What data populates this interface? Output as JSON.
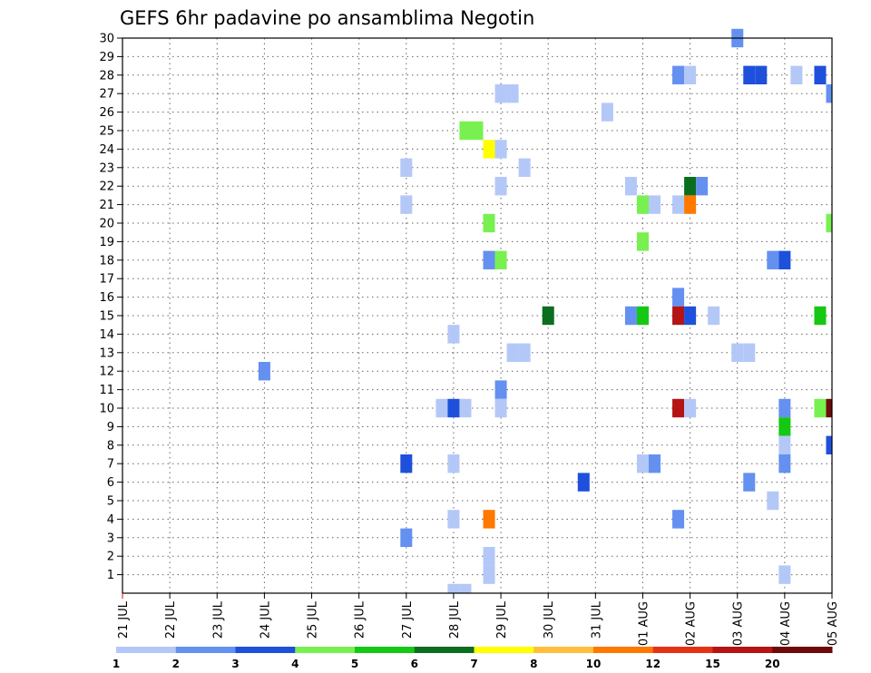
{
  "chart_data": {
    "type": "heatmap",
    "title": "GEFS 6hr padavine po ansamblima Negotin",
    "xlabel": "",
    "ylabel": "",
    "x_tick_labels": [
      "21 JUL",
      "22 JUL",
      "23 JUL",
      "24 JUL",
      "25 JUL",
      "26 JUL",
      "27 JUL",
      "28 JUL",
      "29 JUL",
      "30 JUL",
      "31 JUL",
      "01 AUG",
      "02 AUG",
      "03 AUG",
      "04 AUG",
      "05 AUG"
    ],
    "y_tick_labels": [
      "1",
      "2",
      "3",
      "4",
      "5",
      "6",
      "7",
      "8",
      "9",
      "10",
      "11",
      "12",
      "13",
      "14",
      "15",
      "16",
      "17",
      "18",
      "19",
      "20",
      "21",
      "22",
      "23",
      "24",
      "25",
      "26",
      "27",
      "28",
      "29",
      "30"
    ],
    "xlim": [
      "21 JUL 00",
      "05 AUG 00"
    ],
    "ylim": [
      0,
      30
    ],
    "grid": true,
    "x_step_hours": 6,
    "colorbar": {
      "tick_labels": [
        "1",
        "2",
        "3",
        "4",
        "5",
        "6",
        "7",
        "8",
        "10",
        "12",
        "15",
        "20"
      ],
      "colors": [
        "#b4c8f8",
        "#6490f0",
        "#1e50dc",
        "#78f050",
        "#14c814",
        "#0a6e1e",
        "#ffff00",
        "#ffbe3c",
        "#ff7800",
        "#e63214",
        "#b41414",
        "#6e0a0a"
      ]
    },
    "cells": [
      {
        "member": 30,
        "x": "03 AUG 00",
        "color": "#6490f0"
      },
      {
        "member": 28,
        "x": "01 AUG 18",
        "color": "#6490f0"
      },
      {
        "member": 28,
        "x": "02 AUG 00",
        "color": "#b4c8f8"
      },
      {
        "member": 28,
        "x": "03 AUG 06",
        "color": "#1e50dc"
      },
      {
        "member": 28,
        "x": "03 AUG 12",
        "color": "#1e50dc"
      },
      {
        "member": 28,
        "x": "04 AUG 06",
        "color": "#b4c8f8"
      },
      {
        "member": 28,
        "x": "04 AUG 18",
        "color": "#1e50dc"
      },
      {
        "member": 27,
        "x": "29 JUL 00",
        "color": "#b4c8f8"
      },
      {
        "member": 27,
        "x": "29 JUL 06",
        "color": "#b4c8f8"
      },
      {
        "member": 27,
        "x": "05 AUG 00",
        "color": "#6490f0"
      },
      {
        "member": 26,
        "x": "31 JUL 06",
        "color": "#b4c8f8"
      },
      {
        "member": 25,
        "x": "28 JUL 06",
        "color": "#78f050"
      },
      {
        "member": 25,
        "x": "28 JUL 12",
        "color": "#78f050"
      },
      {
        "member": 24,
        "x": "28 JUL 18",
        "color": "#ffff00"
      },
      {
        "member": 24,
        "x": "29 JUL 00",
        "color": "#b4c8f8"
      },
      {
        "member": 23,
        "x": "27 JUL 00",
        "color": "#b4c8f8"
      },
      {
        "member": 23,
        "x": "29 JUL 12",
        "color": "#b4c8f8"
      },
      {
        "member": 22,
        "x": "29 JUL 00",
        "color": "#b4c8f8"
      },
      {
        "member": 22,
        "x": "31 JUL 18",
        "color": "#b4c8f8"
      },
      {
        "member": 22,
        "x": "02 AUG 00",
        "color": "#0a6e1e"
      },
      {
        "member": 22,
        "x": "02 AUG 06",
        "color": "#6490f0"
      },
      {
        "member": 21,
        "x": "27 JUL 00",
        "color": "#b4c8f8"
      },
      {
        "member": 21,
        "x": "01 AUG 00",
        "color": "#78f050"
      },
      {
        "member": 21,
        "x": "01 AUG 06",
        "color": "#b4c8f8"
      },
      {
        "member": 21,
        "x": "01 AUG 18",
        "color": "#b4c8f8"
      },
      {
        "member": 21,
        "x": "02 AUG 00",
        "color": "#ff7800"
      },
      {
        "member": 20,
        "x": "28 JUL 18",
        "color": "#78f050"
      },
      {
        "member": 20,
        "x": "05 AUG 00",
        "color": "#78f050"
      },
      {
        "member": 19,
        "x": "01 AUG 00",
        "color": "#78f050"
      },
      {
        "member": 18,
        "x": "28 JUL 18",
        "color": "#6490f0"
      },
      {
        "member": 18,
        "x": "29 JUL 00",
        "color": "#78f050"
      },
      {
        "member": 18,
        "x": "03 AUG 18",
        "color": "#6490f0"
      },
      {
        "member": 18,
        "x": "04 AUG 00",
        "color": "#1e50dc"
      },
      {
        "member": 16,
        "x": "01 AUG 18",
        "color": "#6490f0"
      },
      {
        "member": 15,
        "x": "30 JUL 00",
        "color": "#0a6e1e"
      },
      {
        "member": 15,
        "x": "31 JUL 18",
        "color": "#6490f0"
      },
      {
        "member": 15,
        "x": "01 AUG 00",
        "color": "#14c814"
      },
      {
        "member": 15,
        "x": "01 AUG 18",
        "color": "#b41414"
      },
      {
        "member": 15,
        "x": "02 AUG 00",
        "color": "#1e50dc"
      },
      {
        "member": 15,
        "x": "02 AUG 12",
        "color": "#b4c8f8"
      },
      {
        "member": 15,
        "x": "04 AUG 18",
        "color": "#14c814"
      },
      {
        "member": 14,
        "x": "28 JUL 00",
        "color": "#b4c8f8"
      },
      {
        "member": 13,
        "x": "29 JUL 06",
        "color": "#b4c8f8"
      },
      {
        "member": 13,
        "x": "29 JUL 12",
        "color": "#b4c8f8"
      },
      {
        "member": 13,
        "x": "03 AUG 00",
        "color": "#b4c8f8"
      },
      {
        "member": 13,
        "x": "03 AUG 06",
        "color": "#b4c8f8"
      },
      {
        "member": 12,
        "x": "24 JUL 00",
        "color": "#6490f0"
      },
      {
        "member": 11,
        "x": "29 JUL 00",
        "color": "#6490f0"
      },
      {
        "member": 10,
        "x": "27 JUL 18",
        "color": "#b4c8f8"
      },
      {
        "member": 10,
        "x": "28 JUL 00",
        "color": "#1e50dc"
      },
      {
        "member": 10,
        "x": "28 JUL 06",
        "color": "#b4c8f8"
      },
      {
        "member": 10,
        "x": "29 JUL 00",
        "color": "#b4c8f8"
      },
      {
        "member": 10,
        "x": "01 AUG 18",
        "color": "#b41414"
      },
      {
        "member": 10,
        "x": "02 AUG 00",
        "color": "#b4c8f8"
      },
      {
        "member": 10,
        "x": "04 AUG 00",
        "color": "#6490f0"
      },
      {
        "member": 10,
        "x": "04 AUG 18",
        "color": "#78f050"
      },
      {
        "member": 10,
        "x": "05 AUG 00",
        "color": "#6e0a0a"
      },
      {
        "member": 9,
        "x": "04 AUG 00",
        "color": "#14c814"
      },
      {
        "member": 8,
        "x": "04 AUG 00",
        "color": "#b4c8f8"
      },
      {
        "member": 8,
        "x": "05 AUG 00",
        "color": "#1e50dc"
      },
      {
        "member": 7,
        "x": "27 JUL 00",
        "color": "#1e50dc"
      },
      {
        "member": 7,
        "x": "28 JUL 00",
        "color": "#b4c8f8"
      },
      {
        "member": 7,
        "x": "01 AUG 00",
        "color": "#b4c8f8"
      },
      {
        "member": 7,
        "x": "01 AUG 06",
        "color": "#6490f0"
      },
      {
        "member": 7,
        "x": "04 AUG 00",
        "color": "#6490f0"
      },
      {
        "member": 6,
        "x": "30 JUL 18",
        "color": "#1e50dc"
      },
      {
        "member": 6,
        "x": "03 AUG 06",
        "color": "#6490f0"
      },
      {
        "member": 5,
        "x": "03 AUG 18",
        "color": "#b4c8f8"
      },
      {
        "member": 4,
        "x": "28 JUL 00",
        "color": "#b4c8f8"
      },
      {
        "member": 4,
        "x": "28 JUL 18",
        "color": "#ff7800"
      },
      {
        "member": 4,
        "x": "01 AUG 18",
        "color": "#6490f0"
      },
      {
        "member": 3,
        "x": "27 JUL 00",
        "color": "#6490f0"
      },
      {
        "member": 2,
        "x": "28 JUL 18",
        "color": "#b4c8f8"
      },
      {
        "member": 1,
        "x": "28 JUL 18",
        "color": "#b4c8f8"
      },
      {
        "member": 1,
        "x": "04 AUG 00",
        "color": "#b4c8f8"
      },
      {
        "member": 0,
        "x": "28 JUL 00",
        "color": "#b4c8f8"
      },
      {
        "member": 0,
        "x": "28 JUL 06",
        "color": "#b4c8f8"
      }
    ]
  }
}
